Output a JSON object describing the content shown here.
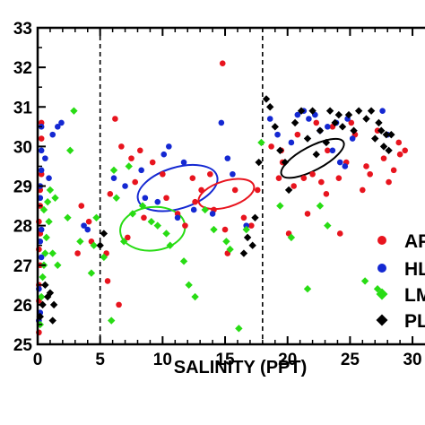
{
  "chart_data": {
    "type": "scatter",
    "xlabel": "SALINITY (PPT)",
    "ylabel": "",
    "xlim": [
      0,
      31
    ],
    "ylim": [
      25,
      33
    ],
    "xticks": [
      0,
      5,
      10,
      15,
      20,
      25,
      30
    ],
    "yticks": [
      25,
      26,
      27,
      28,
      29,
      30,
      31,
      32,
      33
    ],
    "vlines": [
      5,
      18
    ],
    "legend_position": "right",
    "series": [
      {
        "name": "AP",
        "marker": "circle",
        "color": "#e8141e",
        "points": [
          [
            0.1,
            25.3
          ],
          [
            0.1,
            25.6
          ],
          [
            0.1,
            26.1
          ],
          [
            0.1,
            26.5
          ],
          [
            0.2,
            27.0
          ],
          [
            0.1,
            27.4
          ],
          [
            0.2,
            27.8
          ],
          [
            0.1,
            28.1
          ],
          [
            0.2,
            28.5
          ],
          [
            0.2,
            28.9
          ],
          [
            0.3,
            29.3
          ],
          [
            0.3,
            30.2
          ],
          [
            0.3,
            30.6
          ],
          [
            3.2,
            27.3
          ],
          [
            3.5,
            28.5
          ],
          [
            4.1,
            28.1
          ],
          [
            4.3,
            27.6
          ],
          [
            5.5,
            27.3
          ],
          [
            5.6,
            26.6
          ],
          [
            5.8,
            28.8
          ],
          [
            6.2,
            30.7
          ],
          [
            6.7,
            30.0
          ],
          [
            6.5,
            26.0
          ],
          [
            7.2,
            27.7
          ],
          [
            7.5,
            29.7
          ],
          [
            7.8,
            29.1
          ],
          [
            8.2,
            29.9
          ],
          [
            8.5,
            28.2
          ],
          [
            9.2,
            29.6
          ],
          [
            10.0,
            29.3
          ],
          [
            10.3,
            28.7
          ],
          [
            11.2,
            28.3
          ],
          [
            11.8,
            28.0
          ],
          [
            12.4,
            29.2
          ],
          [
            12.6,
            28.6
          ],
          [
            13.1,
            28.9
          ],
          [
            13.8,
            29.3
          ],
          [
            14.1,
            28.4
          ],
          [
            14.8,
            32.1
          ],
          [
            15.0,
            27.9
          ],
          [
            15.2,
            27.3
          ],
          [
            15.8,
            28.9
          ],
          [
            16.5,
            28.2
          ],
          [
            17.1,
            28.0
          ],
          [
            17.6,
            28.9
          ],
          [
            18.7,
            30.0
          ],
          [
            19.3,
            29.2
          ],
          [
            19.5,
            29.9
          ],
          [
            19.6,
            29.6
          ],
          [
            20.1,
            27.8
          ],
          [
            20.5,
            29.0
          ],
          [
            20.8,
            30.3
          ],
          [
            21.3,
            29.2
          ],
          [
            21.6,
            28.3
          ],
          [
            22.0,
            29.3
          ],
          [
            22.3,
            30.6
          ],
          [
            22.7,
            29.1
          ],
          [
            23.1,
            28.8
          ],
          [
            23.2,
            29.9
          ],
          [
            23.6,
            30.5
          ],
          [
            24.1,
            29.2
          ],
          [
            24.2,
            27.8
          ],
          [
            24.7,
            29.6
          ],
          [
            25.1,
            30.6
          ],
          [
            25.4,
            30.3
          ],
          [
            26.0,
            28.9
          ],
          [
            26.3,
            29.5
          ],
          [
            26.6,
            29.3
          ],
          [
            27.2,
            30.4
          ],
          [
            27.7,
            29.7
          ],
          [
            28.1,
            29.1
          ],
          [
            28.5,
            29.4
          ],
          [
            28.9,
            30.1
          ],
          [
            29.0,
            29.8
          ],
          [
            29.4,
            29.9
          ]
        ]
      },
      {
        "name": "HL",
        "marker": "circle",
        "color": "#1428d2",
        "points": [
          [
            0.1,
            25.6
          ],
          [
            0.2,
            25.8
          ],
          [
            0.1,
            26.4
          ],
          [
            0.3,
            27.2
          ],
          [
            0.2,
            27.6
          ],
          [
            0.3,
            27.9
          ],
          [
            0.2,
            28.7
          ],
          [
            0.2,
            29.0
          ],
          [
            0.3,
            29.4
          ],
          [
            0.3,
            29.9
          ],
          [
            0.3,
            30.5
          ],
          [
            0.6,
            29.7
          ],
          [
            0.9,
            29.2
          ],
          [
            1.2,
            30.3
          ],
          [
            1.6,
            30.5
          ],
          [
            1.9,
            30.6
          ],
          [
            3.7,
            28.0
          ],
          [
            4.0,
            27.9
          ],
          [
            6.1,
            29.2
          ],
          [
            7.0,
            29.0
          ],
          [
            8.3,
            29.4
          ],
          [
            8.6,
            28.7
          ],
          [
            9.6,
            28.6
          ],
          [
            10.1,
            29.8
          ],
          [
            10.5,
            30.0
          ],
          [
            11.2,
            28.2
          ],
          [
            11.7,
            29.6
          ],
          [
            12.5,
            28.4
          ],
          [
            14.0,
            28.3
          ],
          [
            14.7,
            30.6
          ],
          [
            15.2,
            29.7
          ],
          [
            15.6,
            29.3
          ],
          [
            16.7,
            28.0
          ],
          [
            18.6,
            30.7
          ],
          [
            19.2,
            30.3
          ],
          [
            20.3,
            30.1
          ],
          [
            20.8,
            30.8
          ],
          [
            21.3,
            30.9
          ],
          [
            21.7,
            30.7
          ],
          [
            22.2,
            30.8
          ],
          [
            22.6,
            30.4
          ],
          [
            23.2,
            30.5
          ],
          [
            23.6,
            29.9
          ],
          [
            23.9,
            30.6
          ],
          [
            24.2,
            29.6
          ],
          [
            24.6,
            29.5
          ],
          [
            24.8,
            30.7
          ],
          [
            25.2,
            30.2
          ],
          [
            27.6,
            30.9
          ],
          [
            28.0,
            30.3
          ]
        ]
      },
      {
        "name": "LM",
        "marker": "diamond",
        "color": "#28dc14",
        "points": [
          [
            0.2,
            25.5
          ],
          [
            0.3,
            26.2
          ],
          [
            0.4,
            26.7
          ],
          [
            0.5,
            27.0
          ],
          [
            0.6,
            27.3
          ],
          [
            0.7,
            27.7
          ],
          [
            0.9,
            28.1
          ],
          [
            0.5,
            28.4
          ],
          [
            0.8,
            28.6
          ],
          [
            1.0,
            28.9
          ],
          [
            1.4,
            28.7
          ],
          [
            1.2,
            27.3
          ],
          [
            1.6,
            27.0
          ],
          [
            2.4,
            28.2
          ],
          [
            2.6,
            29.9
          ],
          [
            2.9,
            30.9
          ],
          [
            3.4,
            27.6
          ],
          [
            4.3,
            26.8
          ],
          [
            4.5,
            27.5
          ],
          [
            4.7,
            28.2
          ],
          [
            5.3,
            27.2
          ],
          [
            5.9,
            25.6
          ],
          [
            6.1,
            29.4
          ],
          [
            6.3,
            28.7
          ],
          [
            6.9,
            27.6
          ],
          [
            7.3,
            29.5
          ],
          [
            7.6,
            28.3
          ],
          [
            8.4,
            28.5
          ],
          [
            9.1,
            28.1
          ],
          [
            9.6,
            28.0
          ],
          [
            10.3,
            27.8
          ],
          [
            10.6,
            27.5
          ],
          [
            11.7,
            27.1
          ],
          [
            12.1,
            26.5
          ],
          [
            12.6,
            26.2
          ],
          [
            13.4,
            28.4
          ],
          [
            14.1,
            27.9
          ],
          [
            15.1,
            27.6
          ],
          [
            15.4,
            27.4
          ],
          [
            16.1,
            25.4
          ],
          [
            16.7,
            27.9
          ],
          [
            17.9,
            30.1
          ],
          [
            19.4,
            28.5
          ],
          [
            20.3,
            27.7
          ],
          [
            21.6,
            26.4
          ],
          [
            22.6,
            28.5
          ],
          [
            23.2,
            28.0
          ],
          [
            26.2,
            26.6
          ],
          [
            27.2,
            26.4
          ]
        ]
      },
      {
        "name": "PL",
        "marker": "diamond",
        "color": "#000000",
        "points": [
          [
            0.2,
            25.7
          ],
          [
            0.4,
            26.0
          ],
          [
            0.6,
            26.5
          ],
          [
            0.8,
            26.2
          ],
          [
            1.0,
            26.3
          ],
          [
            1.3,
            26.0
          ],
          [
            1.2,
            25.6
          ],
          [
            5.0,
            27.5
          ],
          [
            5.3,
            27.8
          ],
          [
            16.5,
            27.3
          ],
          [
            16.8,
            27.7
          ],
          [
            17.2,
            27.5
          ],
          [
            17.4,
            28.2
          ],
          [
            17.7,
            29.6
          ],
          [
            18.3,
            31.2
          ],
          [
            18.6,
            31.0
          ],
          [
            19.0,
            30.5
          ],
          [
            19.4,
            29.9
          ],
          [
            19.8,
            29.6
          ],
          [
            20.1,
            28.9
          ],
          [
            20.6,
            30.6
          ],
          [
            21.1,
            30.9
          ],
          [
            21.6,
            30.2
          ],
          [
            22.0,
            30.9
          ],
          [
            22.3,
            29.8
          ],
          [
            22.6,
            30.4
          ],
          [
            23.1,
            30.1
          ],
          [
            23.4,
            30.9
          ],
          [
            23.8,
            30.6
          ],
          [
            24.1,
            30.8
          ],
          [
            24.4,
            30.5
          ],
          [
            24.9,
            30.8
          ],
          [
            25.3,
            30.4
          ],
          [
            25.7,
            30.9
          ],
          [
            26.3,
            30.7
          ],
          [
            26.7,
            30.9
          ],
          [
            27.0,
            30.2
          ],
          [
            27.3,
            30.6
          ],
          [
            27.5,
            30.4
          ],
          [
            27.7,
            30.0
          ],
          [
            27.9,
            30.3
          ],
          [
            28.1,
            29.9
          ],
          [
            28.3,
            30.3
          ]
        ]
      }
    ],
    "ellipses": [
      {
        "color": "#1428d2",
        "cx": 11.2,
        "cy": 28.95,
        "rx": 3.3,
        "ry": 0.52,
        "angle_deg": -17
      },
      {
        "color": "#e8141e",
        "cx": 15.1,
        "cy": 28.8,
        "rx": 2.3,
        "ry": 0.33,
        "angle_deg": -17
      },
      {
        "color": "#28dc14",
        "cx": 9.2,
        "cy": 27.92,
        "rx": 2.6,
        "ry": 0.55,
        "angle_deg": -6
      },
      {
        "color": "#000000",
        "cx": 22.0,
        "cy": 29.7,
        "rx": 2.8,
        "ry": 0.3,
        "angle_deg": -28
      }
    ]
  }
}
